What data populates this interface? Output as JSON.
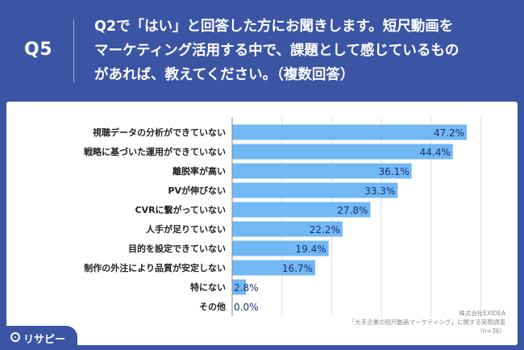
{
  "header": {
    "question_number": "Q5",
    "question_lines": [
      "Q2で「はい」と回答した方にお聞きします。短尺動画を",
      "マーケティング活用する中で、課題として感じているもの",
      "があれば、教えてください。（複数回答）"
    ]
  },
  "chart_data": {
    "type": "bar",
    "orientation": "horizontal",
    "categories": [
      "視聴データの分析ができていない",
      "戦略に基づいた運用ができていない",
      "離脱率が高い",
      "PVが伸びない",
      "CVRに繋がっていない",
      "人手が足りていない",
      "目的を設定できていない",
      "制作の外注により品質が安定しない",
      "特にない",
      "その他"
    ],
    "values": [
      47.2,
      44.4,
      36.1,
      33.3,
      27.8,
      22.2,
      19.4,
      16.7,
      2.8,
      0.0
    ],
    "value_labels": [
      "47.2%",
      "44.4%",
      "36.1%",
      "33.3%",
      "27.8%",
      "22.2%",
      "19.4%",
      "16.7%",
      "2.8%",
      "0.0%"
    ],
    "xlim": [
      0,
      60
    ],
    "grid": true,
    "bar_color": "#71b8f5",
    "label_color": "#1c2f6e"
  },
  "source": {
    "company": "株式会社EXIDEA",
    "survey": "「大手企業の短尺動画マーケティング」に関する実態調査",
    "sample": "（n=36）"
  },
  "logo": {
    "text": "リサピー",
    "icon": "search-icon"
  },
  "colors": {
    "background": "#3b55a4",
    "panel": "#ffffff",
    "text_dark": "#222222"
  }
}
